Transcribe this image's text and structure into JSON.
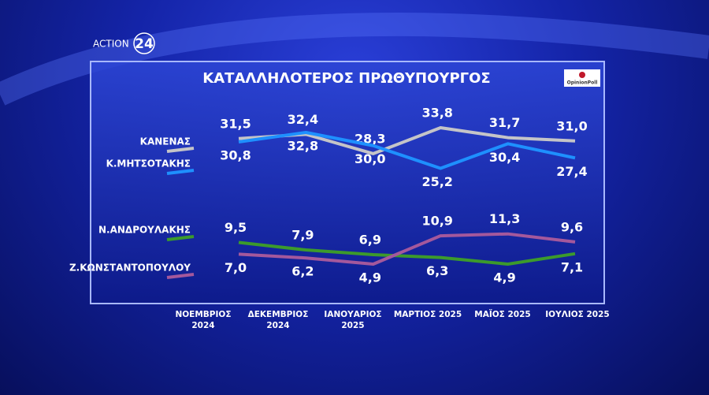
{
  "channel": {
    "name": "ACTION",
    "number": "24"
  },
  "chart_data": {
    "type": "line",
    "title": "ΚΑΤΑΛΛΗΛΟΤΕΡΟΣ  ΠΡΩΘΥΠΟΥΡΓΟΣ",
    "source": "OpinionPoll",
    "categories": [
      "ΝΟΕΜΒΡΙΟΣ 2024",
      "ΔΕΚΕΜΒΡΙΟΣ 2024",
      "ΙΑΝΟΥΑΡΙΟΣ 2025",
      "ΜΑΡΤΙΟΣ 2025",
      "ΜΑΪΟΣ 2025",
      "ΙΟΥΛΙΟΣ 2025"
    ],
    "series": [
      {
        "name": "ΚΑΝΕΝΑΣ",
        "color": "#c4c4c8",
        "values": [
          31.5,
          32.4,
          28.3,
          33.8,
          31.7,
          31.0
        ],
        "value_labels": [
          "31,5",
          "32,4",
          "28,3",
          "33,8",
          "31,7",
          "31,0"
        ]
      },
      {
        "name": "Κ.ΜΗΤΣΟΤΑΚΗΣ",
        "color": "#1e90ff",
        "values": [
          30.8,
          32.8,
          30.0,
          25.2,
          30.4,
          27.4
        ],
        "value_labels": [
          "30,8",
          "32,8",
          "30,0",
          "25,2",
          "30,4",
          "27,4"
        ]
      },
      {
        "name": "Ν.ΑΝΔΡΟΥΛΑΚΗΣ",
        "color": "#3c9a2c",
        "values": [
          9.5,
          7.9,
          6.9,
          6.3,
          4.9,
          7.1
        ],
        "value_labels": [
          "9,5",
          "7,9",
          "6,9",
          "6,3",
          "4,9",
          "7,1"
        ]
      },
      {
        "name": "Ζ.ΚΩΝΣΤΑΝΤΟΠΟΥΛΟΥ",
        "color": "#a4589c",
        "values": [
          7.0,
          6.2,
          4.9,
          10.9,
          11.3,
          9.6
        ],
        "value_labels": [
          "7,0",
          "6,2",
          "4,9",
          "10,9",
          "11,3",
          "9,6"
        ]
      }
    ]
  }
}
